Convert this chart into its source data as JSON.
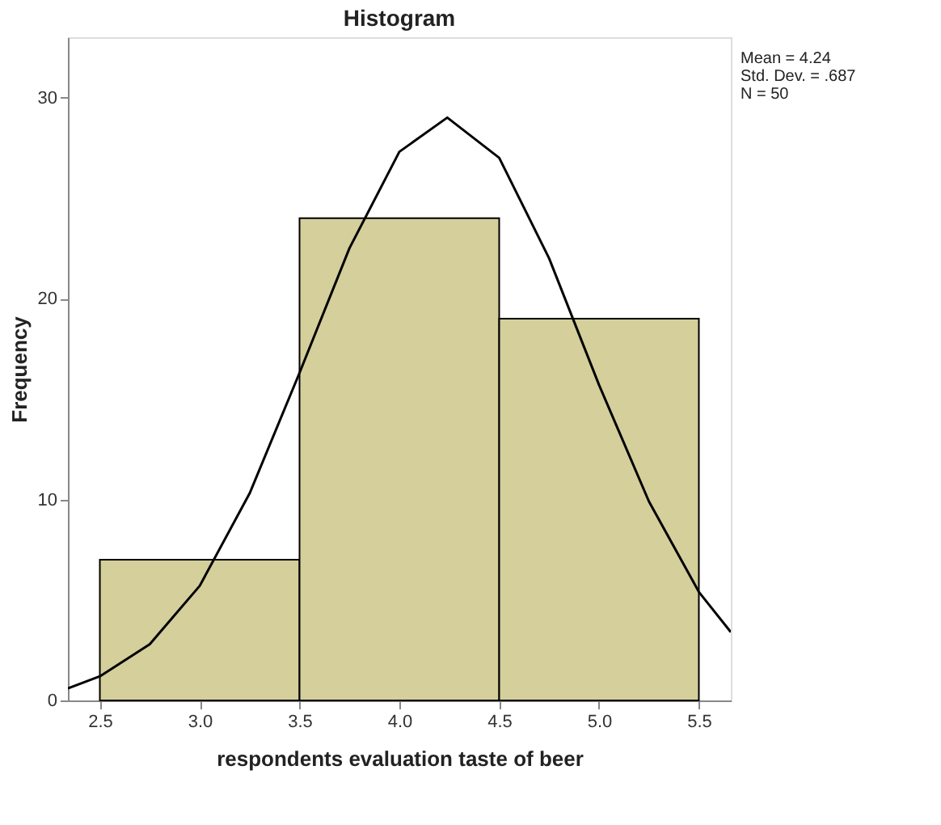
{
  "chart_data": {
    "type": "histogram",
    "title": "Histogram",
    "xlabel": "respondents evaluation taste of beer",
    "ylabel": "Frequency",
    "bins": [
      2.5,
      3.5,
      4.5,
      5.5
    ],
    "values": [
      7,
      24,
      19
    ],
    "color": "#d4cf9b",
    "series": [
      {
        "type": "line",
        "color": "#000000",
        "x": [
          2.34,
          2.5,
          2.75,
          3.0,
          3.25,
          3.5,
          3.75,
          4.0,
          4.24,
          4.5,
          4.75,
          5.0,
          5.25,
          5.5,
          5.66
        ],
        "values": [
          0.6,
          1.2,
          2.8,
          5.7,
          10.3,
          16.3,
          22.5,
          27.3,
          29.0,
          27.0,
          22.0,
          15.7,
          9.9,
          5.4,
          3.4
        ]
      }
    ],
    "xlim": [
      2.34,
      5.66
    ],
    "ylim": [
      0,
      33
    ],
    "xticks": [
      2.5,
      {
        "value": 3,
        "label": "3.0"
      },
      3.5,
      {
        "value": 4,
        "label": "4.0"
      },
      4.5,
      {
        "value": 5,
        "label": "5.0"
      },
      5.5
    ],
    "yticks": [
      0,
      10,
      20,
      30
    ],
    "annotations": [
      "Mean = 4.24",
      "Std. Dev. = .687",
      "N = 50"
    ],
    "grid": false
  }
}
